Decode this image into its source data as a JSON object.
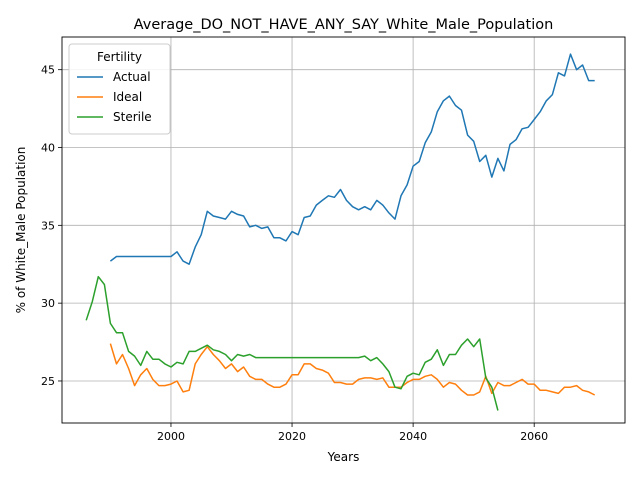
{
  "chart_data": {
    "type": "line",
    "title": "Average_DO_NOT_HAVE_ANY_SAY_White_Male_Population",
    "xlabel": "Years",
    "ylabel": "% of White_Male Population",
    "xlim": [
      1982,
      2075
    ],
    "ylim": [
      22.3,
      47.1
    ],
    "xticks": [
      2000,
      2020,
      2040,
      2060
    ],
    "yticks": [
      25,
      30,
      35,
      40,
      45
    ],
    "grid": true,
    "legend": {
      "title": "Fertility",
      "position": "top-left"
    },
    "series": [
      {
        "name": "Actual",
        "color": "#1f77b4",
        "x": [
          1990,
          1991,
          1992,
          1993,
          1994,
          1995,
          1996,
          1997,
          1998,
          1999,
          2000,
          2001,
          2002,
          2003,
          2004,
          2005,
          2006,
          2007,
          2008,
          2009,
          2010,
          2011,
          2012,
          2013,
          2014,
          2015,
          2016,
          2017,
          2018,
          2019,
          2020,
          2021,
          2022,
          2023,
          2024,
          2025,
          2026,
          2027,
          2028,
          2029,
          2030,
          2031,
          2032,
          2033,
          2034,
          2035,
          2036,
          2037,
          2038,
          2039,
          2040,
          2041,
          2042,
          2043,
          2044,
          2045,
          2046,
          2047,
          2048,
          2049,
          2050,
          2051,
          2052,
          2053,
          2054,
          2055,
          2056,
          2057,
          2058,
          2059,
          2060,
          2061,
          2062,
          2063,
          2064,
          2065,
          2066,
          2067,
          2068,
          2069,
          2070
        ],
        "values": [
          32.7,
          33.0,
          33.0,
          33.0,
          33.0,
          33.0,
          33.0,
          33.0,
          33.0,
          33.0,
          33.0,
          33.3,
          32.7,
          32.5,
          33.6,
          34.4,
          35.9,
          35.6,
          35.5,
          35.4,
          35.9,
          35.7,
          35.6,
          34.9,
          35.0,
          34.8,
          34.9,
          34.2,
          34.2,
          34.0,
          34.6,
          34.4,
          35.5,
          35.6,
          36.3,
          36.6,
          36.9,
          36.8,
          37.3,
          36.6,
          36.2,
          36.0,
          36.2,
          36.0,
          36.6,
          36.3,
          35.8,
          35.4,
          36.9,
          37.6,
          38.8,
          39.1,
          40.3,
          41.0,
          42.3,
          43.0,
          43.3,
          42.7,
          42.4,
          40.8,
          40.4,
          39.1,
          39.5,
          38.1,
          39.3,
          38.5,
          40.2,
          40.5,
          41.2,
          41.3,
          41.8,
          42.3,
          43.0,
          43.4,
          44.8,
          44.6,
          46.0,
          45.0,
          45.3,
          44.3,
          44.3
        ]
      },
      {
        "name": "Ideal",
        "color": "#ff7f0e",
        "x": [
          1990,
          1991,
          1992,
          1993,
          1994,
          1995,
          1996,
          1997,
          1998,
          1999,
          2000,
          2001,
          2002,
          2003,
          2004,
          2005,
          2006,
          2007,
          2008,
          2009,
          2010,
          2011,
          2012,
          2013,
          2014,
          2015,
          2016,
          2017,
          2018,
          2019,
          2020,
          2021,
          2022,
          2023,
          2024,
          2025,
          2026,
          2027,
          2028,
          2029,
          2030,
          2031,
          2032,
          2033,
          2034,
          2035,
          2036,
          2037,
          2038,
          2039,
          2040,
          2041,
          2042,
          2043,
          2044,
          2045,
          2046,
          2047,
          2048,
          2049,
          2050,
          2051,
          2052,
          2053,
          2054,
          2055,
          2056,
          2057,
          2058,
          2059,
          2060,
          2061,
          2062,
          2063,
          2064,
          2065,
          2066,
          2067,
          2068,
          2069,
          2070
        ],
        "values": [
          27.4,
          26.1,
          26.7,
          25.8,
          24.7,
          25.4,
          25.8,
          25.1,
          24.7,
          24.7,
          24.8,
          25.0,
          24.3,
          24.4,
          26.1,
          26.7,
          27.2,
          26.7,
          26.3,
          25.8,
          26.1,
          25.6,
          25.9,
          25.3,
          25.1,
          25.1,
          24.8,
          24.6,
          24.6,
          24.8,
          25.4,
          25.4,
          26.1,
          26.1,
          25.8,
          25.7,
          25.5,
          24.9,
          24.9,
          24.8,
          24.8,
          25.1,
          25.2,
          25.2,
          25.1,
          25.2,
          24.6,
          24.6,
          24.6,
          24.9,
          25.1,
          25.1,
          25.3,
          25.4,
          25.1,
          24.6,
          24.9,
          24.8,
          24.4,
          24.1,
          24.1,
          24.3,
          25.3,
          24.2,
          24.9,
          24.7,
          24.7,
          24.9,
          25.1,
          24.8,
          24.8,
          24.4,
          24.4,
          24.3,
          24.2,
          24.6,
          24.6,
          24.7,
          24.4,
          24.3,
          24.1
        ]
      },
      {
        "name": "Sterile",
        "color": "#2ca02c",
        "x": [
          1986,
          1987,
          1988,
          1989,
          1990,
          1991,
          1992,
          1993,
          1994,
          1995,
          1996,
          1997,
          1998,
          1999,
          2000,
          2001,
          2002,
          2003,
          2004,
          2005,
          2006,
          2007,
          2008,
          2009,
          2010,
          2011,
          2012,
          2013,
          2014,
          2015,
          2016,
          2017,
          2018,
          2019,
          2020,
          2021,
          2022,
          2023,
          2024,
          2025,
          2026,
          2027,
          2028,
          2029,
          2030,
          2031,
          2032,
          2033,
          2034,
          2035,
          2036,
          2037,
          2038,
          2039,
          2040,
          2041,
          2042,
          2043,
          2044,
          2045,
          2046,
          2047,
          2048,
          2049,
          2050,
          2051,
          2052,
          2053,
          2054
        ],
        "values": [
          28.9,
          30.1,
          31.7,
          31.2,
          28.7,
          28.1,
          28.1,
          26.9,
          26.6,
          26.0,
          26.9,
          26.4,
          26.4,
          26.1,
          25.9,
          26.2,
          26.1,
          26.9,
          26.9,
          27.1,
          27.3,
          27.0,
          26.9,
          26.7,
          26.3,
          26.7,
          26.6,
          26.7,
          26.5,
          26.5,
          26.5,
          26.5,
          26.5,
          26.5,
          26.5,
          26.5,
          26.5,
          26.5,
          26.5,
          26.5,
          26.5,
          26.5,
          26.5,
          26.5,
          26.5,
          26.5,
          26.6,
          26.3,
          26.5,
          26.1,
          25.6,
          24.6,
          24.5,
          25.3,
          25.5,
          25.4,
          26.2,
          26.4,
          27.0,
          26.0,
          26.7,
          26.7,
          27.3,
          27.7,
          27.2,
          27.7,
          25.2,
          24.6,
          23.1
        ]
      }
    ]
  }
}
